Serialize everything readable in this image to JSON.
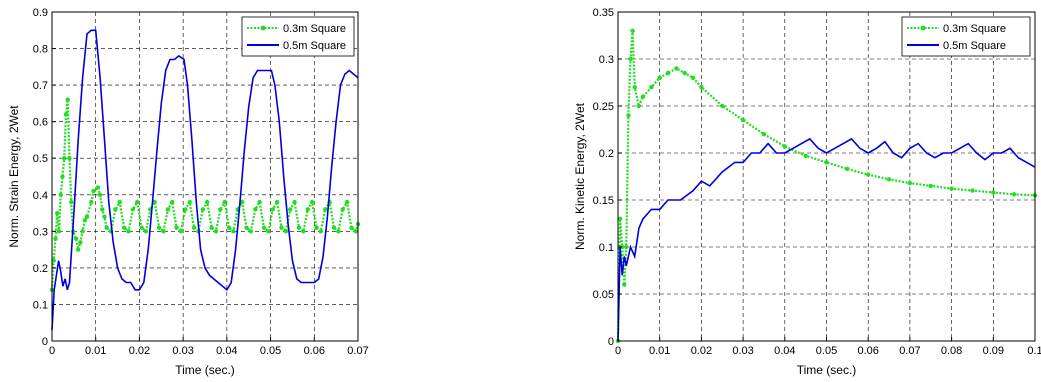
{
  "chart_data": [
    {
      "type": "line",
      "title": "",
      "xlabel": "Time (sec.)",
      "ylabel": "Norm. Strain Energy, 2Wet",
      "xlim": [
        0,
        0.07
      ],
      "ylim": [
        0,
        0.9
      ],
      "xticks": [
        0,
        0.01,
        0.02,
        0.03,
        0.04,
        0.05,
        0.06,
        0.07
      ],
      "xtick_labels": [
        "0",
        "0.01",
        "0.02",
        "0.03",
        "0.04",
        "0.05",
        "0.06",
        "0.07"
      ],
      "yticks": [
        0,
        0.1,
        0.2,
        0.3,
        0.4,
        0.5,
        0.6,
        0.7,
        0.8,
        0.9
      ],
      "ytick_labels": [
        "0",
        "0.1",
        "0.2",
        "0.3",
        "0.4",
        "0.5",
        "0.6",
        "0.7",
        "0.8",
        "0.9"
      ],
      "grid": true,
      "legend_position": "top-right",
      "series": [
        {
          "name": "0.3m Square",
          "color": "#22dd22",
          "style": "dotted-markers",
          "x": [
            0,
            0.0004,
            0.0008,
            0.0012,
            0.0016,
            0.002,
            0.0024,
            0.0028,
            0.0032,
            0.0036,
            0.004,
            0.0044,
            0.0048,
            0.0055,
            0.006,
            0.0065,
            0.007,
            0.0075,
            0.008,
            0.009,
            0.0095,
            0.0105,
            0.011,
            0.0115,
            0.012,
            0.0125,
            0.0135,
            0.0145,
            0.0155,
            0.0165,
            0.0175,
            0.0185,
            0.0195,
            0.0205,
            0.0215,
            0.0225,
            0.0235,
            0.0245,
            0.0255,
            0.0265,
            0.0275,
            0.0285,
            0.0295,
            0.0305,
            0.0315,
            0.0325,
            0.0335,
            0.0345,
            0.0355,
            0.0365,
            0.0375,
            0.0385,
            0.0395,
            0.0405,
            0.0415,
            0.0425,
            0.0435,
            0.0445,
            0.0455,
            0.0465,
            0.0475,
            0.0485,
            0.0495,
            0.0505,
            0.0515,
            0.0525,
            0.0535,
            0.0545,
            0.0555,
            0.0565,
            0.0575,
            0.0585,
            0.0595,
            0.0605,
            0.0615,
            0.0625,
            0.0635,
            0.0645,
            0.0655,
            0.0665,
            0.0675,
            0.0685,
            0.0695,
            0.07
          ],
          "values": [
            0.14,
            0.22,
            0.28,
            0.35,
            0.3,
            0.4,
            0.45,
            0.5,
            0.62,
            0.66,
            0.5,
            0.38,
            0.3,
            0.28,
            0.25,
            0.27,
            0.3,
            0.33,
            0.34,
            0.38,
            0.41,
            0.42,
            0.4,
            0.36,
            0.34,
            0.31,
            0.3,
            0.36,
            0.38,
            0.31,
            0.3,
            0.36,
            0.38,
            0.31,
            0.3,
            0.36,
            0.38,
            0.31,
            0.3,
            0.36,
            0.38,
            0.31,
            0.3,
            0.36,
            0.38,
            0.31,
            0.3,
            0.36,
            0.38,
            0.31,
            0.3,
            0.36,
            0.38,
            0.31,
            0.3,
            0.36,
            0.38,
            0.31,
            0.3,
            0.36,
            0.38,
            0.31,
            0.3,
            0.36,
            0.38,
            0.31,
            0.3,
            0.36,
            0.38,
            0.31,
            0.3,
            0.36,
            0.38,
            0.31,
            0.3,
            0.36,
            0.38,
            0.31,
            0.3,
            0.36,
            0.38,
            0.31,
            0.3,
            0.32
          ]
        },
        {
          "name": "0.5m Square",
          "color": "#0000dd",
          "style": "solid",
          "x": [
            0,
            0.0005,
            0.001,
            0.0015,
            0.002,
            0.0025,
            0.003,
            0.0035,
            0.004,
            0.005,
            0.006,
            0.007,
            0.008,
            0.009,
            0.01,
            0.011,
            0.012,
            0.013,
            0.014,
            0.015,
            0.016,
            0.017,
            0.018,
            0.019,
            0.02,
            0.021,
            0.022,
            0.023,
            0.024,
            0.025,
            0.026,
            0.027,
            0.028,
            0.029,
            0.0302,
            0.031,
            0.032,
            0.033,
            0.034,
            0.035,
            0.036,
            0.037,
            0.038,
            0.039,
            0.04,
            0.041,
            0.042,
            0.043,
            0.044,
            0.045,
            0.046,
            0.047,
            0.048,
            0.049,
            0.0502,
            0.051,
            0.052,
            0.053,
            0.054,
            0.055,
            0.056,
            0.057,
            0.058,
            0.059,
            0.06,
            0.061,
            0.062,
            0.063,
            0.064,
            0.065,
            0.066,
            0.067,
            0.068,
            0.069,
            0.07
          ],
          "values": [
            0.03,
            0.14,
            0.18,
            0.22,
            0.19,
            0.15,
            0.17,
            0.14,
            0.16,
            0.35,
            0.55,
            0.72,
            0.84,
            0.85,
            0.85,
            0.72,
            0.55,
            0.38,
            0.27,
            0.2,
            0.17,
            0.16,
            0.16,
            0.14,
            0.14,
            0.16,
            0.25,
            0.38,
            0.52,
            0.65,
            0.74,
            0.77,
            0.77,
            0.78,
            0.77,
            0.7,
            0.55,
            0.38,
            0.25,
            0.2,
            0.18,
            0.17,
            0.16,
            0.15,
            0.14,
            0.16,
            0.25,
            0.38,
            0.52,
            0.64,
            0.72,
            0.74,
            0.74,
            0.74,
            0.74,
            0.7,
            0.6,
            0.45,
            0.32,
            0.22,
            0.17,
            0.16,
            0.16,
            0.16,
            0.16,
            0.17,
            0.23,
            0.34,
            0.48,
            0.6,
            0.7,
            0.73,
            0.74,
            0.73,
            0.72
          ]
        }
      ]
    },
    {
      "type": "line",
      "title": "",
      "xlabel": "Time (sec.)",
      "ylabel": "Norm. Kinetic Energy, 2Wet",
      "xlim": [
        0,
        0.1
      ],
      "ylim": [
        0,
        0.35
      ],
      "xticks": [
        0,
        0.01,
        0.02,
        0.03,
        0.04,
        0.05,
        0.06,
        0.07,
        0.08,
        0.09,
        0.1
      ],
      "xtick_labels": [
        "0",
        "0.01",
        "0.02",
        "0.03",
        "0.04",
        "0.05",
        "0.06",
        "0.07",
        "0.08",
        "0.09",
        "0.1"
      ],
      "yticks": [
        0,
        0.05,
        0.1,
        0.15,
        0.2,
        0.25,
        0.3,
        0.35
      ],
      "ytick_labels": [
        "0",
        "0.05",
        "0.1",
        "0.15",
        "0.2",
        "0.25",
        "0.3",
        "0.35"
      ],
      "grid": true,
      "legend_position": "top-right",
      "series": [
        {
          "name": "0.3m Square",
          "color": "#22dd22",
          "style": "dotted-markers",
          "x": [
            0,
            0.0005,
            0.001,
            0.0015,
            0.002,
            0.0025,
            0.003,
            0.0035,
            0.004,
            0.005,
            0.006,
            0.008,
            0.01,
            0.012,
            0.014,
            0.016,
            0.018,
            0.02,
            0.025,
            0.03,
            0.035,
            0.04,
            0.045,
            0.05,
            0.055,
            0.06,
            0.065,
            0.07,
            0.075,
            0.08,
            0.085,
            0.09,
            0.095,
            0.1
          ],
          "values": [
            0.0,
            0.13,
            0.1,
            0.06,
            0.1,
            0.24,
            0.3,
            0.33,
            0.27,
            0.25,
            0.26,
            0.27,
            0.28,
            0.285,
            0.29,
            0.285,
            0.28,
            0.27,
            0.25,
            0.235,
            0.22,
            0.207,
            0.197,
            0.19,
            0.183,
            0.177,
            0.172,
            0.168,
            0.165,
            0.162,
            0.16,
            0.158,
            0.156,
            0.155
          ]
        },
        {
          "name": "0.5m Square",
          "color": "#0000dd",
          "style": "solid",
          "x": [
            0,
            0.0005,
            0.001,
            0.0015,
            0.002,
            0.003,
            0.004,
            0.005,
            0.006,
            0.008,
            0.01,
            0.012,
            0.015,
            0.018,
            0.02,
            0.022,
            0.025,
            0.028,
            0.03,
            0.032,
            0.034,
            0.036,
            0.038,
            0.04,
            0.042,
            0.044,
            0.046,
            0.048,
            0.05,
            0.052,
            0.054,
            0.056,
            0.058,
            0.06,
            0.062,
            0.064,
            0.066,
            0.068,
            0.07,
            0.072,
            0.074,
            0.076,
            0.078,
            0.08,
            0.082,
            0.084,
            0.086,
            0.088,
            0.09,
            0.092,
            0.094,
            0.096,
            0.098,
            0.1
          ],
          "values": [
            0.0,
            0.1,
            0.07,
            0.09,
            0.08,
            0.1,
            0.09,
            0.12,
            0.13,
            0.14,
            0.14,
            0.15,
            0.15,
            0.16,
            0.17,
            0.165,
            0.18,
            0.19,
            0.19,
            0.2,
            0.2,
            0.21,
            0.2,
            0.2,
            0.205,
            0.21,
            0.215,
            0.205,
            0.2,
            0.205,
            0.21,
            0.215,
            0.205,
            0.2,
            0.205,
            0.212,
            0.2,
            0.195,
            0.205,
            0.21,
            0.2,
            0.195,
            0.2,
            0.2,
            0.205,
            0.21,
            0.2,
            0.193,
            0.2,
            0.2,
            0.205,
            0.195,
            0.19,
            0.185
          ]
        }
      ]
    }
  ]
}
